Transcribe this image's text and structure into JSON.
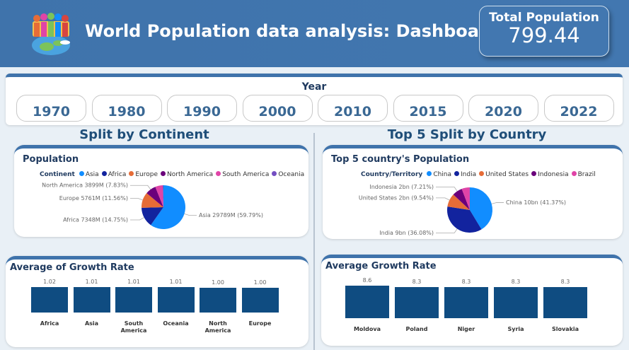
{
  "header": {
    "title": "World Population data analysis: Dashboard",
    "kpi": {
      "label": "Total Population",
      "value": 799.44
    }
  },
  "slicer": {
    "title": "Year",
    "options": [
      1970,
      1980,
      1990,
      2000,
      2010,
      2015,
      2020,
      2022
    ]
  },
  "sections": [
    "Split by Continent",
    "Top 5 Split by Country"
  ],
  "chart_data": [
    {
      "type": "pie",
      "title": "Population",
      "legend_title": "Continent",
      "categories": [
        "Asia",
        "Africa",
        "Europe",
        "North America",
        "South America",
        "Oceania"
      ],
      "values": [
        29789,
        7348,
        5761,
        3899,
        2740,
        286
      ],
      "value_labels": [
        "Asia 29789M (59.79%)",
        "Africa 7348M (14.75%)",
        "Europe 5761M (11.56%)",
        "North America 3899M (7.83%)",
        null,
        null
      ],
      "colors": [
        "#118dff",
        "#12239e",
        "#e66c37",
        "#6b007b",
        "#e044a7",
        "#744ec2"
      ]
    },
    {
      "type": "pie",
      "title": "Top 5 country's Population",
      "legend_title": "Country/Territory",
      "categories": [
        "China",
        "India",
        "United States",
        "Indonesia",
        "Brazil"
      ],
      "values": [
        10.2,
        8.9,
        2.35,
        1.78,
        1.43
      ],
      "value_labels": [
        "China 10bn (41.37%)",
        "India 9bn (36.08%)",
        "United States 2bn (9.54%)",
        "Indonesia 2bn (7.21%)",
        null
      ],
      "colors": [
        "#118dff",
        "#12239e",
        "#e66c37",
        "#6b007b",
        "#e044a7"
      ]
    },
    {
      "type": "bar",
      "title": "Average of Growth Rate",
      "categories": [
        "Africa",
        "Asia",
        "South America",
        "Oceania",
        "North America",
        "Europe"
      ],
      "values": [
        1.02,
        1.01,
        1.01,
        1.01,
        1.0,
        1.0
      ],
      "value_labels": [
        "1.02",
        "1.01",
        "1.01",
        "1.01",
        "1.00",
        "1.00"
      ],
      "color": "#0f4c81"
    },
    {
      "type": "bar",
      "title": "Average Growth Rate",
      "categories": [
        "Moldova",
        "Poland",
        "Niger",
        "Syria",
        "Slovakia"
      ],
      "values": [
        8.6,
        8.3,
        8.3,
        8.3,
        8.3
      ],
      "color": "#0f4c81"
    }
  ]
}
